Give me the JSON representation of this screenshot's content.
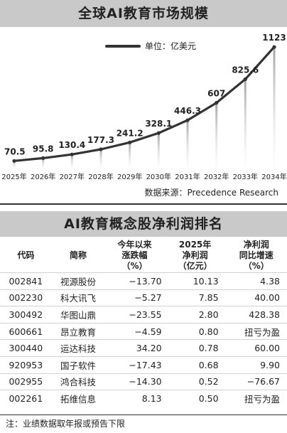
{
  "chart_section": {
    "title": "全球AI教育市场规模",
    "source": "数据来源：Precedence Research"
  },
  "chart_data": {
    "type": "line",
    "title": "全球AI教育市场规模",
    "x": [
      "2025年",
      "2026年",
      "2027年",
      "2028年",
      "2029年",
      "2030年",
      "2031年",
      "2032年",
      "2033年",
      "2034年"
    ],
    "series": [
      {
        "name": "单位：亿美元",
        "values": [
          70.5,
          95.8,
          130.4,
          177.3,
          241.2,
          328.1,
          446.3,
          607,
          825.6,
          1123
        ]
      }
    ],
    "value_labels": [
      "70.5",
      "95.8",
      "130.4",
      "177.3",
      "241.2",
      "328.1",
      "446.3",
      "607",
      "825.6",
      "1123"
    ],
    "ylim": [
      0,
      1150
    ],
    "legend_position": "top-center",
    "grid": false
  },
  "table_section": {
    "title": "AI教育概念股净利润排名",
    "headers": [
      [
        "代码"
      ],
      [
        "简称"
      ],
      [
        "今年以来",
        "涨跌幅",
        "（%）"
      ],
      [
        "2025年",
        "净利润",
        "（亿元）"
      ],
      [
        "净利润",
        "同比增速",
        "（%）"
      ]
    ],
    "rows": [
      [
        "002841",
        "视源股份",
        "−13.70",
        "10.13",
        "4.38"
      ],
      [
        "002230",
        "科大讯飞",
        "−5.27",
        "7.85",
        "40.00"
      ],
      [
        "300492",
        "华图山鼎",
        "−23.55",
        "2.80",
        "428.38"
      ],
      [
        "600661",
        "昂立教育",
        "−4.59",
        "0.80",
        "扭亏为盈"
      ],
      [
        "300440",
        "运达科技",
        "34.20",
        "0.78",
        "60.00"
      ],
      [
        "920953",
        "国子软件",
        "−17.43",
        "0.68",
        "9.90"
      ],
      [
        "002955",
        "鸿合科技",
        "−14.30",
        "0.52",
        "−76.67"
      ],
      [
        "002261",
        "拓维信息",
        "8.13",
        "0.50",
        "扭亏为盈"
      ]
    ],
    "note": "注：业绩数据取年报或预告下限"
  },
  "colors": {
    "title_bar": "#c9c9c9",
    "line": "#333333",
    "bar": "#b5b5b5"
  }
}
